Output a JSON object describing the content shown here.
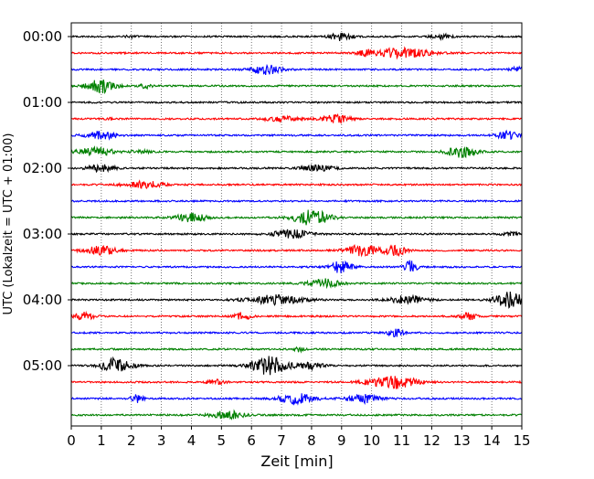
{
  "chart_data": {
    "type": "line",
    "title": "",
    "xlabel": "Zeit  [min]",
    "ylabel": "UTC (Lokalzeit = UTC + 01:00)",
    "xlim": [
      0,
      15
    ],
    "x_ticks": [
      0,
      1,
      2,
      3,
      4,
      5,
      6,
      7,
      8,
      9,
      10,
      11,
      12,
      13,
      14,
      15
    ],
    "y_tick_labels": [
      "00:00",
      "01:00",
      "02:00",
      "03:00",
      "04:00",
      "05:00"
    ],
    "y_tick_rows": [
      0,
      4,
      8,
      12,
      16,
      20
    ],
    "grid": "vertical-dotted",
    "row_colors": [
      "#000000",
      "#ff0000",
      "#0000ff",
      "#008000"
    ],
    "num_rows": 24,
    "traces": [
      {
        "row": 0,
        "color": "#000000",
        "bursts": [
          [
            2,
            0.1,
            0.25
          ],
          [
            9,
            0.5,
            0.35
          ],
          [
            12.3,
            0.3,
            0.3
          ]
        ]
      },
      {
        "row": 1,
        "color": "#ff0000",
        "bursts": [
          [
            11,
            0.6,
            0.9
          ],
          [
            9.8,
            0.3,
            0.25
          ]
        ]
      },
      {
        "row": 2,
        "color": "#0000ff",
        "bursts": [
          [
            6.5,
            0.6,
            0.45
          ],
          [
            14.9,
            0.3,
            0.25
          ]
        ]
      },
      {
        "row": 3,
        "color": "#008000",
        "bursts": [
          [
            1,
            0.8,
            0.45
          ],
          [
            2.5,
            0.3,
            0.2
          ]
        ]
      },
      {
        "row": 4,
        "color": "#000000",
        "bursts": []
      },
      {
        "row": 5,
        "color": "#ff0000",
        "bursts": [
          [
            7,
            0.3,
            0.6
          ],
          [
            8.8,
            0.45,
            0.45
          ],
          [
            1.3,
            0.1,
            0.2
          ]
        ]
      },
      {
        "row": 6,
        "color": "#0000ff",
        "bursts": [
          [
            1,
            0.45,
            0.5
          ],
          [
            14.5,
            0.45,
            0.35
          ]
        ]
      },
      {
        "row": 7,
        "color": "#008000",
        "bursts": [
          [
            0.8,
            0.5,
            0.6
          ],
          [
            13,
            0.7,
            0.45
          ],
          [
            2.3,
            0.2,
            0.3
          ]
        ]
      },
      {
        "row": 8,
        "color": "#000000",
        "bursts": [
          [
            1,
            0.4,
            0.45
          ],
          [
            8.2,
            0.35,
            0.5
          ]
        ]
      },
      {
        "row": 9,
        "color": "#ff0000",
        "bursts": [
          [
            2.4,
            0.45,
            0.6
          ]
        ]
      },
      {
        "row": 10,
        "color": "#0000ff",
        "bursts": []
      },
      {
        "row": 11,
        "color": "#008000",
        "bursts": [
          [
            4,
            0.5,
            0.5
          ],
          [
            8,
            0.9,
            0.6
          ]
        ]
      },
      {
        "row": 12,
        "color": "#000000",
        "bursts": [
          [
            7.3,
            0.5,
            0.6
          ],
          [
            14.6,
            0.2,
            0.3
          ]
        ]
      },
      {
        "row": 13,
        "color": "#ff0000",
        "bursts": [
          [
            1,
            0.5,
            0.55
          ],
          [
            9.7,
            0.7,
            0.55
          ],
          [
            10.8,
            0.6,
            0.35
          ]
        ]
      },
      {
        "row": 14,
        "color": "#0000ff",
        "bursts": [
          [
            9,
            0.8,
            0.35
          ],
          [
            11.3,
            0.75,
            0.2
          ]
        ]
      },
      {
        "row": 15,
        "color": "#008000",
        "bursts": [
          [
            8.4,
            0.55,
            0.5
          ]
        ]
      },
      {
        "row": 16,
        "color": "#000000",
        "bursts": [
          [
            6.8,
            0.55,
            0.9
          ],
          [
            11.2,
            0.55,
            0.55
          ],
          [
            14.6,
            0.9,
            0.5
          ]
        ]
      },
      {
        "row": 17,
        "color": "#ff0000",
        "bursts": [
          [
            0.4,
            0.55,
            0.3
          ],
          [
            5.7,
            0.45,
            0.25
          ],
          [
            13.2,
            0.5,
            0.25
          ]
        ]
      },
      {
        "row": 18,
        "color": "#0000ff",
        "bursts": [
          [
            10.8,
            0.5,
            0.25
          ]
        ]
      },
      {
        "row": 19,
        "color": "#008000",
        "bursts": [
          [
            7.6,
            0.3,
            0.15
          ]
        ]
      },
      {
        "row": 20,
        "color": "#000000",
        "bursts": [
          [
            1.5,
            0.9,
            0.5
          ],
          [
            6.6,
            1.1,
            0.6
          ],
          [
            8,
            0.4,
            0.4
          ]
        ]
      },
      {
        "row": 21,
        "color": "#ff0000",
        "bursts": [
          [
            10.7,
            0.8,
            0.8
          ],
          [
            4.8,
            0.3,
            0.3
          ]
        ]
      },
      {
        "row": 22,
        "color": "#0000ff",
        "bursts": [
          [
            2.2,
            0.45,
            0.2
          ],
          [
            7.5,
            0.6,
            0.6
          ],
          [
            9.7,
            0.5,
            0.55
          ]
        ]
      },
      {
        "row": 23,
        "color": "#008000",
        "bursts": [
          [
            5.2,
            0.5,
            0.55
          ]
        ]
      }
    ]
  }
}
